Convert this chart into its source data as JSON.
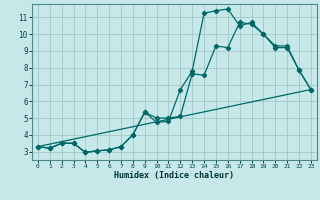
{
  "xlabel": "Humidex (Indice chaleur)",
  "bg_color": "#c6e8e8",
  "grid_color": "#a8cccc",
  "line_color": "#006868",
  "xlim": [
    -0.5,
    23.5
  ],
  "ylim": [
    2.5,
    11.8
  ],
  "xticks": [
    0,
    1,
    2,
    3,
    4,
    5,
    6,
    7,
    8,
    9,
    10,
    11,
    12,
    13,
    14,
    15,
    16,
    17,
    18,
    19,
    20,
    21,
    22,
    23
  ],
  "yticks": [
    3,
    4,
    5,
    6,
    7,
    8,
    9,
    10,
    11
  ],
  "line1_x": [
    0,
    1,
    2,
    3,
    4,
    5,
    6,
    7,
    8,
    9,
    10,
    11,
    12,
    13,
    14,
    15,
    16,
    17,
    18,
    19,
    20,
    21,
    22,
    23
  ],
  "line1_y": [
    3.3,
    3.2,
    3.5,
    3.5,
    2.95,
    3.05,
    3.1,
    3.3,
    4.0,
    5.35,
    4.75,
    4.8,
    6.7,
    7.8,
    11.25,
    11.4,
    11.5,
    10.5,
    10.7,
    10.0,
    9.2,
    9.2,
    7.85,
    6.7
  ],
  "line2_x": [
    0,
    1,
    2,
    3,
    4,
    5,
    6,
    7,
    8,
    9,
    10,
    11,
    12,
    13,
    14,
    15,
    16,
    17,
    18,
    19,
    20,
    21,
    22,
    23
  ],
  "line2_y": [
    3.3,
    3.2,
    3.5,
    3.5,
    2.95,
    3.05,
    3.1,
    3.3,
    4.0,
    5.35,
    5.0,
    5.0,
    5.1,
    7.65,
    7.55,
    9.3,
    9.2,
    10.7,
    10.6,
    10.0,
    9.3,
    9.3,
    7.85,
    6.7
  ],
  "line3_x": [
    0,
    23
  ],
  "line3_y": [
    3.3,
    6.7
  ]
}
